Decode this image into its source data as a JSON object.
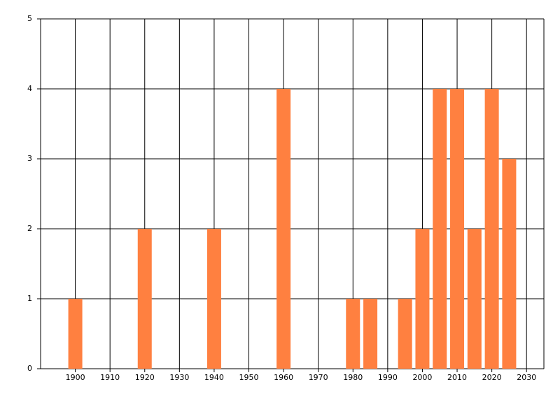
{
  "chart_data": {
    "type": "bar",
    "x": [
      1900,
      1920,
      1940,
      1960,
      1980,
      1985,
      1995,
      2000,
      2005,
      2010,
      2015,
      2020,
      2025
    ],
    "values": [
      1,
      2,
      2,
      4,
      1,
      1,
      1,
      2,
      4,
      4,
      2,
      4,
      3
    ],
    "color": "#ff8040",
    "xlim": [
      1890,
      2035
    ],
    "xticks": [
      1900,
      1910,
      1920,
      1930,
      1940,
      1950,
      1960,
      1970,
      1980,
      1990,
      2000,
      2010,
      2020,
      2030
    ],
    "ylim": [
      0,
      5
    ],
    "yticks": [
      0,
      1,
      2,
      3,
      4,
      5
    ],
    "grid": true
  }
}
